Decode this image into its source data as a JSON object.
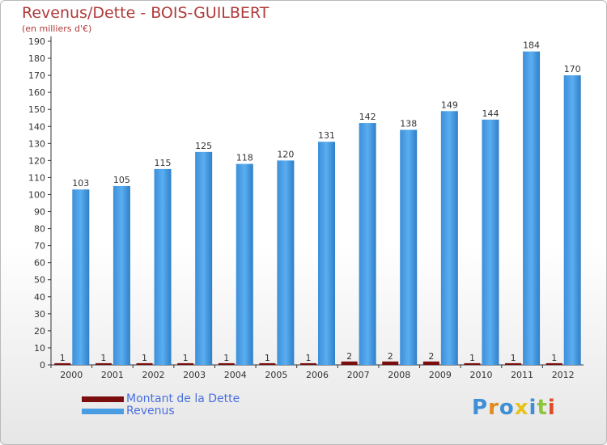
{
  "title": "Revenus/Dette - BOIS-GUILBERT",
  "subtitle": "(en milliers d'€)",
  "logo_text": "Proxiti",
  "colors": {
    "revenus": "#4a9de3",
    "dette": "#7a0e0e",
    "title": "#b03a3a",
    "legend_text": "#4a6fe0",
    "axis": "#333333",
    "grid": "#aaaaaa"
  },
  "chart_data": {
    "type": "bar",
    "title": "Revenus/Dette - BOIS-GUILBERT",
    "subtitle": "(en milliers d'€)",
    "categories": [
      "2000",
      "2001",
      "2002",
      "2003",
      "2004",
      "2005",
      "2006",
      "2007",
      "2008",
      "2009",
      "2010",
      "2011",
      "2012"
    ],
    "series": [
      {
        "name": "Montant de la Dette",
        "color": "#7a0e0e",
        "values": [
          1,
          1,
          1,
          1,
          1,
          1,
          1,
          2,
          2,
          2,
          1,
          1,
          1
        ]
      },
      {
        "name": "Revenus",
        "color": "#4a9de3",
        "values": [
          103,
          105,
          115,
          125,
          118,
          120,
          131,
          142,
          138,
          149,
          144,
          184,
          170
        ]
      }
    ],
    "ylim": [
      0,
      190
    ],
    "ytick_step": 10,
    "grid": false,
    "legend": "bottom-left"
  }
}
